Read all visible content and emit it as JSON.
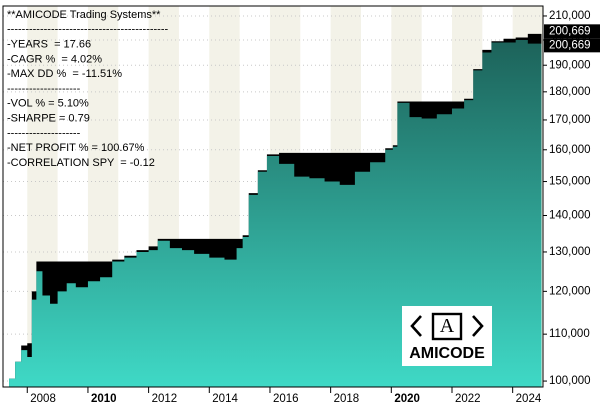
{
  "chart_data": {
    "type": "area",
    "log_y": true,
    "grid": true,
    "annotations": [
      "**AMICODE Trading Systems**",
      "--------------------------------------------",
      "-YEARS  = 17.66",
      "-CAGR %  = 4.02%",
      "-MAX DD %  = -11.51%",
      "--------------------",
      "-VOL % = 5.10%",
      "-SHARPE = 0.79",
      "--------------------",
      "-NET PROFIT % = 100.67%",
      "-CORRELATION SPY  = -0.12"
    ],
    "logo_icon": "A",
    "logo_text": "AMICODE",
    "x": [
      2007.4,
      2007.6,
      2007.8,
      2008.0,
      2008.15,
      2008.3,
      2008.5,
      2008.75,
      2009.0,
      2009.3,
      2009.6,
      2010.0,
      2010.4,
      2010.8,
      2011.2,
      2011.6,
      2012.0,
      2012.3,
      2012.7,
      2013.1,
      2013.5,
      2014.0,
      2014.5,
      2014.9,
      2015.1,
      2015.3,
      2015.6,
      2015.9,
      2016.3,
      2016.8,
      2017.3,
      2017.8,
      2018.3,
      2018.8,
      2019.3,
      2019.8,
      2020.05,
      2020.2,
      2020.6,
      2021.0,
      2021.5,
      2022.0,
      2022.4,
      2022.7,
      2023.0,
      2023.3,
      2023.7,
      2024.1,
      2024.5,
      2024.95
    ],
    "series": [
      {
        "color": "#000000",
        "values": [
          100500,
          104000,
          107500,
          108000,
          120000,
          127500,
          127500,
          127500,
          127500,
          127500,
          127500,
          127500,
          127500,
          128000,
          129000,
          130500,
          131500,
          133500,
          133500,
          133500,
          133500,
          133500,
          133500,
          133500,
          134500,
          146500,
          153500,
          158500,
          159000,
          159000,
          159000,
          159000,
          159000,
          159000,
          159000,
          160500,
          161500,
          176500,
          176500,
          176500,
          176500,
          176500,
          177500,
          188500,
          196000,
          199500,
          200500,
          201000,
          202500,
          200669
        ],
        "value_labels": [
          null,
          null,
          null,
          null,
          null,
          null,
          null,
          null,
          null,
          null,
          null,
          null,
          null,
          null,
          null,
          null,
          null,
          null,
          null,
          null,
          null,
          null,
          null,
          null,
          null,
          null,
          null,
          null,
          null,
          null,
          null,
          null,
          null,
          null,
          null,
          null,
          null,
          null,
          null,
          null,
          null,
          null,
          null,
          null,
          null,
          null,
          null,
          null,
          null,
          "200,669"
        ]
      },
      {
        "color": "#3fd9c6",
        "values": [
          100500,
          104000,
          106500,
          105000,
          118000,
          125000,
          119000,
          117000,
          120000,
          122000,
          121000,
          122500,
          123500,
          127500,
          128500,
          130000,
          130500,
          133000,
          131000,
          130500,
          129500,
          128500,
          128000,
          131000,
          134000,
          146000,
          153000,
          158000,
          155500,
          151500,
          151000,
          150000,
          149000,
          153000,
          156000,
          160000,
          161000,
          176000,
          171000,
          170500,
          172000,
          174000,
          177000,
          188000,
          195000,
          199000,
          199000,
          200000,
          198500,
          200669
        ],
        "value_labels": [
          null,
          null,
          null,
          null,
          null,
          null,
          null,
          null,
          null,
          null,
          null,
          null,
          null,
          null,
          null,
          null,
          null,
          null,
          null,
          null,
          null,
          null,
          null,
          null,
          null,
          null,
          null,
          null,
          null,
          null,
          null,
          null,
          null,
          null,
          null,
          null,
          null,
          null,
          null,
          null,
          null,
          null,
          null,
          null,
          null,
          null,
          null,
          null,
          null,
          "200,669"
        ]
      }
    ],
    "xlim": [
      2007.2,
      2025.0
    ],
    "xticks": [
      2008,
      2010,
      2012,
      2014,
      2016,
      2018,
      2020,
      2022,
      2024
    ],
    "ylim": [
      98800,
      214300
    ],
    "yticks": [
      {
        "value": 100000,
        "label": "100,000"
      },
      {
        "value": 110000,
        "label": "110,000"
      },
      {
        "value": 120000,
        "label": "120,000"
      },
      {
        "value": 130000,
        "label": "130,000"
      },
      {
        "value": 140000,
        "label": "140,000"
      },
      {
        "value": 150000,
        "label": "150,000"
      },
      {
        "value": 160000,
        "label": "160,000"
      },
      {
        "value": 170000,
        "label": "170,000"
      },
      {
        "value": 180000,
        "label": "180,000"
      },
      {
        "value": 190000,
        "label": "190,000"
      },
      {
        "value": 200000,
        "label": "200,000"
      },
      {
        "value": 210000,
        "label": "210,000"
      }
    ]
  }
}
